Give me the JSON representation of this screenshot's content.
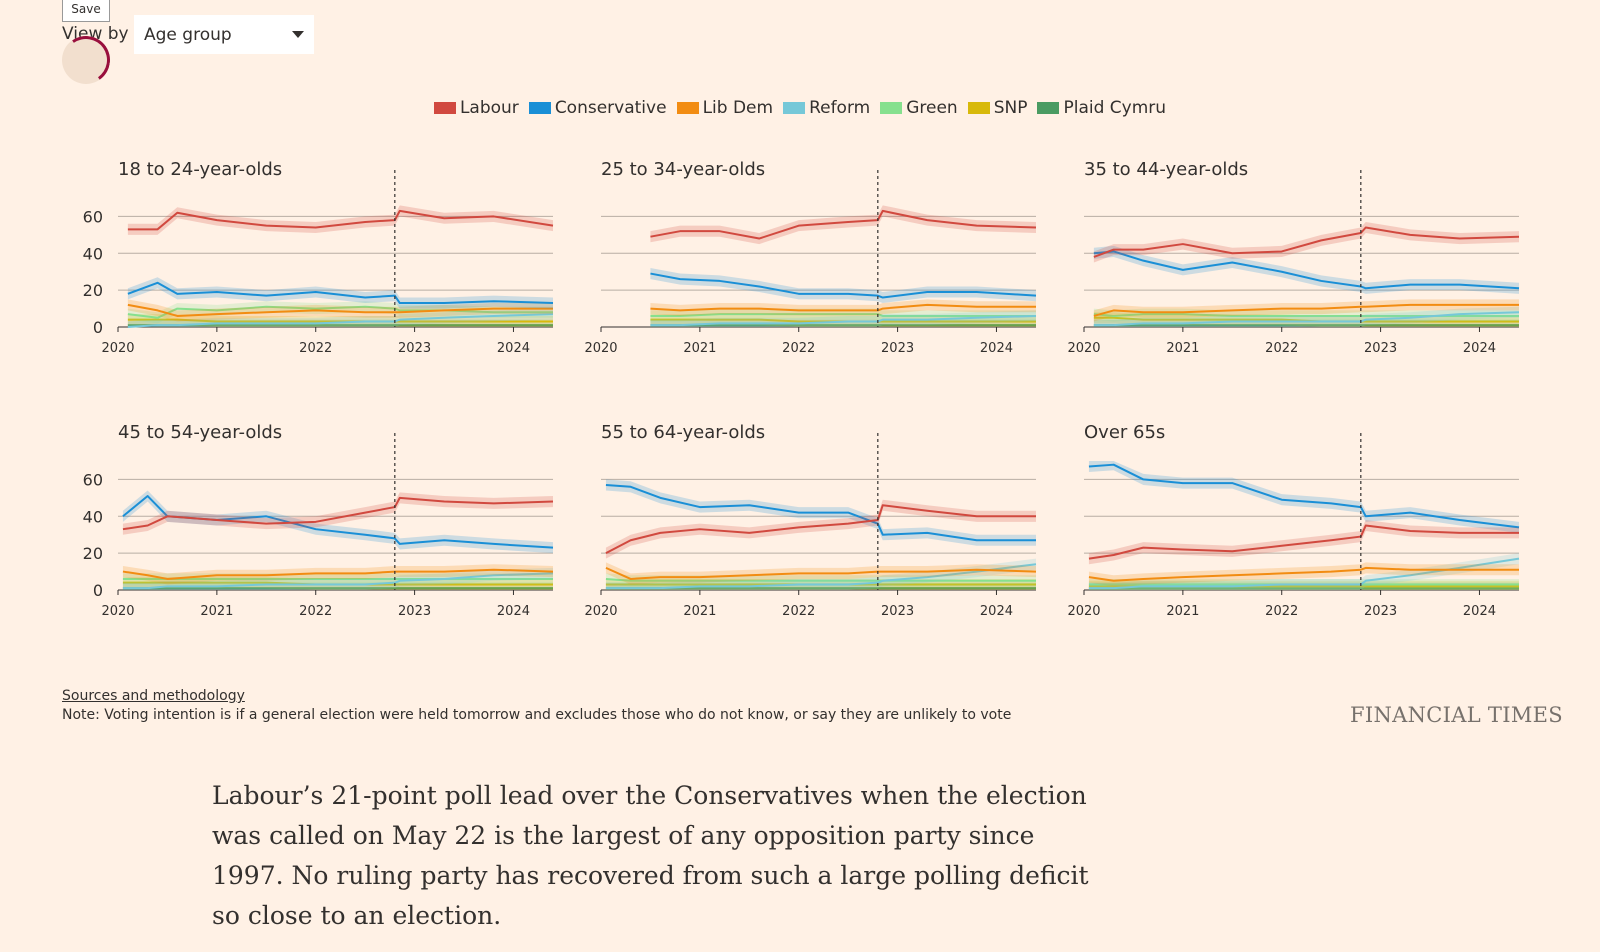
{
  "controls": {
    "save_label": "Save",
    "view_by_label": "View by",
    "view_by_value": "Age group"
  },
  "legend": [
    {
      "name": "Labour",
      "color": "#d1493f"
    },
    {
      "name": "Conservative",
      "color": "#1a8fd6"
    },
    {
      "name": "Lib Dem",
      "color": "#f28c12"
    },
    {
      "name": "Reform",
      "color": "#76c8d8"
    },
    {
      "name": "Green",
      "color": "#86e08e"
    },
    {
      "name": "SNP",
      "color": "#d8b90a"
    },
    {
      "name": "Plaid Cymru",
      "color": "#4a9b62"
    }
  ],
  "chart_data": [
    {
      "type": "line",
      "title": "18 to 24-year-olds",
      "x_ticks": [
        "2020",
        "2021",
        "2022",
        "2023",
        "2024"
      ],
      "y_ticks": [
        "0",
        "20",
        "40",
        "60"
      ],
      "ylim": [
        0,
        70
      ],
      "xlim": [
        2020.0,
        2024.4
      ],
      "marker": 2022.8,
      "x": [
        2020.1,
        2020.4,
        2020.6,
        2021.0,
        2021.5,
        2022.0,
        2022.5,
        2022.8,
        2022.85,
        2023.3,
        2023.8,
        2024.4
      ],
      "series": [
        {
          "name": "Labour",
          "values": [
            53,
            53,
            62,
            58,
            55,
            54,
            57,
            58,
            63,
            59,
            60,
            55
          ]
        },
        {
          "name": "Conservative",
          "values": [
            18,
            24,
            18,
            19,
            17,
            19,
            16,
            17,
            13,
            13,
            14,
            13
          ]
        },
        {
          "name": "Lib Dem",
          "values": [
            12,
            9,
            6,
            7,
            8,
            9,
            8,
            8,
            8,
            9,
            10,
            10
          ]
        },
        {
          "name": "Reform",
          "values": [
            0,
            1,
            1,
            2,
            2,
            2,
            3,
            3,
            4,
            5,
            6,
            7
          ]
        },
        {
          "name": "Green",
          "values": [
            7,
            5,
            10,
            9,
            11,
            10,
            11,
            10,
            9,
            9,
            8,
            8
          ]
        },
        {
          "name": "SNP",
          "values": [
            4,
            4,
            4,
            3,
            3,
            3,
            3,
            3,
            3,
            3,
            3,
            3
          ]
        },
        {
          "name": "Plaid Cymru",
          "values": [
            1,
            1,
            1,
            1,
            1,
            1,
            1,
            1,
            1,
            1,
            1,
            1
          ]
        }
      ]
    },
    {
      "type": "line",
      "title": "25 to 34-year-olds",
      "x_ticks": [
        "2020",
        "2021",
        "2022",
        "2023",
        "2024"
      ],
      "y_ticks": [
        "0",
        "20",
        "40",
        "60"
      ],
      "ylim": [
        0,
        70
      ],
      "xlim": [
        2020.0,
        2024.4
      ],
      "marker": 2022.8,
      "x": [
        2020.5,
        2020.8,
        2021.2,
        2021.6,
        2022.0,
        2022.5,
        2022.8,
        2022.85,
        2023.3,
        2023.8,
        2024.4
      ],
      "series": [
        {
          "name": "Labour",
          "values": [
            49,
            52,
            52,
            48,
            55,
            57,
            58,
            63,
            58,
            55,
            54
          ]
        },
        {
          "name": "Conservative",
          "values": [
            29,
            26,
            25,
            22,
            18,
            18,
            17,
            16,
            19,
            19,
            17
          ]
        },
        {
          "name": "Lib Dem",
          "values": [
            10,
            9,
            10,
            10,
            9,
            9,
            9,
            10,
            12,
            11,
            11
          ]
        },
        {
          "name": "Reform",
          "values": [
            1,
            1,
            2,
            2,
            2,
            3,
            3,
            4,
            4,
            5,
            6
          ]
        },
        {
          "name": "Green",
          "values": [
            6,
            6,
            7,
            7,
            7,
            7,
            7,
            6,
            6,
            6,
            6
          ]
        },
        {
          "name": "SNP",
          "values": [
            4,
            4,
            4,
            4,
            3,
            3,
            3,
            3,
            3,
            3,
            3
          ]
        },
        {
          "name": "Plaid Cymru",
          "values": [
            1,
            1,
            1,
            1,
            1,
            1,
            1,
            1,
            1,
            1,
            1
          ]
        }
      ]
    },
    {
      "type": "line",
      "title": "35 to 44-year-olds",
      "x_ticks": [
        "2020",
        "2021",
        "2022",
        "2023",
        "2024"
      ],
      "y_ticks": [
        "0",
        "20",
        "40",
        "60"
      ],
      "ylim": [
        0,
        70
      ],
      "xlim": [
        2020.0,
        2024.4
      ],
      "marker": 2022.8,
      "x": [
        2020.1,
        2020.3,
        2020.6,
        2021.0,
        2021.5,
        2022.0,
        2022.4,
        2022.8,
        2022.85,
        2023.3,
        2023.8,
        2024.4
      ],
      "series": [
        {
          "name": "Labour",
          "values": [
            38,
            42,
            42,
            45,
            40,
            41,
            47,
            51,
            54,
            50,
            48,
            49
          ]
        },
        {
          "name": "Conservative",
          "values": [
            40,
            41,
            36,
            31,
            35,
            30,
            25,
            22,
            21,
            23,
            23,
            21
          ]
        },
        {
          "name": "Lib Dem",
          "values": [
            6,
            9,
            8,
            8,
            9,
            10,
            10,
            11,
            11,
            12,
            12,
            12
          ]
        },
        {
          "name": "Reform",
          "values": [
            1,
            1,
            2,
            2,
            3,
            3,
            3,
            3,
            4,
            5,
            7,
            8
          ]
        },
        {
          "name": "Green",
          "values": [
            7,
            6,
            7,
            7,
            6,
            6,
            6,
            6,
            6,
            6,
            6,
            6
          ]
        },
        {
          "name": "SNP",
          "values": [
            5,
            5,
            4,
            4,
            4,
            4,
            3,
            3,
            3,
            3,
            3,
            3
          ]
        },
        {
          "name": "Plaid Cymru",
          "values": [
            1,
            1,
            1,
            1,
            1,
            1,
            1,
            1,
            1,
            1,
            1,
            1
          ]
        }
      ]
    },
    {
      "type": "line",
      "title": "45 to 54-year-olds",
      "x_ticks": [
        "2020",
        "2021",
        "2022",
        "2023",
        "2024"
      ],
      "y_ticks": [
        "0",
        "20",
        "40",
        "60"
      ],
      "ylim": [
        0,
        70
      ],
      "xlim": [
        2020.0,
        2024.4
      ],
      "marker": 2022.8,
      "x": [
        2020.05,
        2020.3,
        2020.5,
        2021.0,
        2021.5,
        2022.0,
        2022.5,
        2022.8,
        2022.85,
        2023.3,
        2023.8,
        2024.4
      ],
      "series": [
        {
          "name": "Labour",
          "values": [
            33,
            35,
            40,
            38,
            36,
            37,
            42,
            45,
            50,
            48,
            47,
            48
          ]
        },
        {
          "name": "Conservative",
          "values": [
            40,
            51,
            40,
            38,
            40,
            33,
            30,
            28,
            25,
            27,
            25,
            23
          ]
        },
        {
          "name": "Lib Dem",
          "values": [
            10,
            8,
            6,
            8,
            8,
            9,
            9,
            10,
            10,
            10,
            11,
            10
          ]
        },
        {
          "name": "Reform",
          "values": [
            1,
            1,
            2,
            2,
            3,
            3,
            3,
            4,
            5,
            6,
            8,
            9
          ]
        },
        {
          "name": "Green",
          "values": [
            6,
            6,
            6,
            6,
            6,
            6,
            6,
            6,
            6,
            6,
            6,
            6
          ]
        },
        {
          "name": "SNP",
          "values": [
            4,
            4,
            4,
            4,
            4,
            3,
            3,
            3,
            3,
            3,
            3,
            3
          ]
        },
        {
          "name": "Plaid Cymru",
          "values": [
            1,
            1,
            1,
            1,
            1,
            1,
            1,
            1,
            1,
            1,
            1,
            1
          ]
        }
      ]
    },
    {
      "type": "line",
      "title": "55 to 64-year-olds",
      "x_ticks": [
        "2020",
        "2021",
        "2022",
        "2023",
        "2024"
      ],
      "y_ticks": [
        "0",
        "20",
        "40",
        "60"
      ],
      "ylim": [
        0,
        70
      ],
      "xlim": [
        2020.0,
        2024.4
      ],
      "marker": 2022.8,
      "x": [
        2020.05,
        2020.3,
        2020.6,
        2021.0,
        2021.5,
        2022.0,
        2022.5,
        2022.8,
        2022.85,
        2023.3,
        2023.8,
        2024.4
      ],
      "series": [
        {
          "name": "Labour",
          "values": [
            20,
            27,
            31,
            33,
            31,
            34,
            36,
            38,
            46,
            43,
            40,
            40
          ]
        },
        {
          "name": "Conservative",
          "values": [
            57,
            56,
            50,
            45,
            46,
            42,
            42,
            36,
            30,
            31,
            27,
            27
          ]
        },
        {
          "name": "Lib Dem",
          "values": [
            12,
            6,
            7,
            7,
            8,
            9,
            9,
            10,
            10,
            10,
            11,
            10
          ]
        },
        {
          "name": "Reform",
          "values": [
            1,
            1,
            1,
            2,
            2,
            3,
            3,
            4,
            5,
            7,
            10,
            14
          ]
        },
        {
          "name": "Green",
          "values": [
            6,
            5,
            5,
            5,
            5,
            5,
            5,
            5,
            5,
            5,
            5,
            5
          ]
        },
        {
          "name": "SNP",
          "values": [
            3,
            3,
            3,
            3,
            3,
            3,
            3,
            3,
            3,
            3,
            3,
            3
          ]
        },
        {
          "name": "Plaid Cymru",
          "values": [
            1,
            1,
            1,
            1,
            1,
            1,
            1,
            1,
            1,
            1,
            1,
            1
          ]
        }
      ]
    },
    {
      "type": "line",
      "title": "Over 65s",
      "x_ticks": [
        "2020",
        "2021",
        "2022",
        "2023",
        "2024"
      ],
      "y_ticks": [
        "0",
        "20",
        "40",
        "60"
      ],
      "ylim": [
        0,
        70
      ],
      "xlim": [
        2020.0,
        2024.4
      ],
      "marker": 2022.8,
      "x": [
        2020.05,
        2020.3,
        2020.6,
        2021.0,
        2021.5,
        2022.0,
        2022.5,
        2022.8,
        2022.85,
        2023.3,
        2023.8,
        2024.4
      ],
      "series": [
        {
          "name": "Labour",
          "values": [
            17,
            19,
            23,
            22,
            21,
            24,
            27,
            29,
            35,
            32,
            31,
            31
          ]
        },
        {
          "name": "Conservative",
          "values": [
            67,
            68,
            60,
            58,
            58,
            49,
            47,
            45,
            40,
            42,
            38,
            34
          ]
        },
        {
          "name": "Lib Dem",
          "values": [
            7,
            5,
            6,
            7,
            8,
            9,
            10,
            11,
            12,
            11,
            11,
            11
          ]
        },
        {
          "name": "Reform",
          "values": [
            1,
            1,
            2,
            2,
            2,
            3,
            3,
            3,
            5,
            8,
            12,
            17
          ]
        },
        {
          "name": "Green",
          "values": [
            3,
            3,
            3,
            3,
            3,
            3,
            3,
            3,
            3,
            3,
            3,
            3
          ]
        },
        {
          "name": "SNP",
          "values": [
            2,
            2,
            2,
            2,
            2,
            2,
            2,
            2,
            2,
            2,
            2,
            2
          ]
        },
        {
          "name": "Plaid Cymru",
          "values": [
            1,
            1,
            1,
            1,
            1,
            1,
            1,
            1,
            1,
            1,
            1,
            1
          ]
        }
      ]
    }
  ],
  "footer": {
    "sources_link": "Sources and methodology",
    "note": "Note: Voting intention is if a general election were held tomorrow and excludes those who do not know, or say they are unlikely to vote",
    "logo": "FINANCIAL TIMES"
  },
  "article": {
    "paragraph": "Labour’s 21-point poll lead over the Conservatives when the election was called on May 22 is the largest of any opposition party since 1997. No ruling party has recovered from such a large polling deficit so close to an election."
  }
}
